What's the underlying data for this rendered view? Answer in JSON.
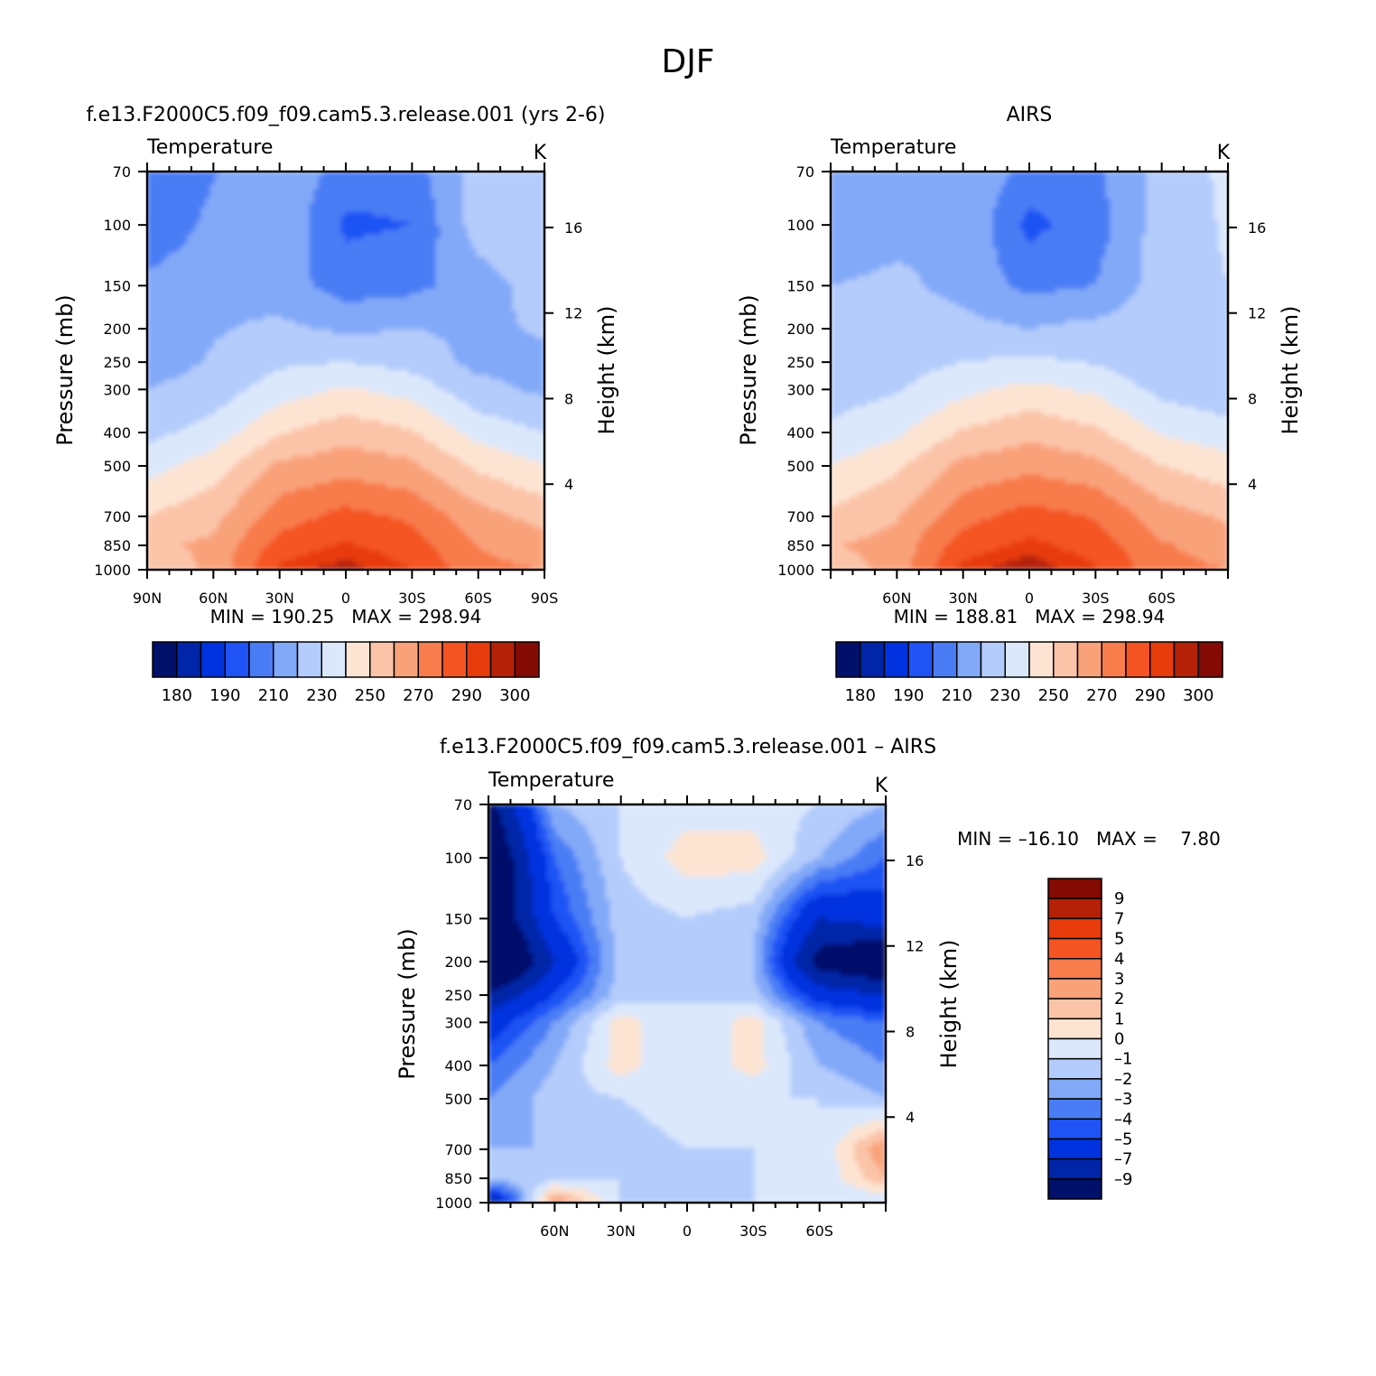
{
  "figure": {
    "title": "DJF"
  },
  "panels": [
    {
      "id": "model",
      "title": "f.e13.F2000C5.f09_f09.cam5.3.release.001 (yrs 2-6)",
      "left_label": "Temperature",
      "right_label": "K",
      "stats": "MIN = 190.25   MAX = 298.94",
      "kind": "abs"
    },
    {
      "id": "obs",
      "title": "AIRS",
      "left_label": "Temperature",
      "right_label": "K",
      "stats": "MIN = 188.81   MAX = 298.94",
      "kind": "abs"
    },
    {
      "id": "diff",
      "title": "f.e13.F2000C5.f09_f09.cam5.3.release.001 – AIRS",
      "left_label": "Temperature",
      "right_label": "K",
      "stats": "MIN = –16.10   MAX =    7.80",
      "kind": "diff"
    }
  ],
  "axes": {
    "ylabel": "Pressure (mb)",
    "y2label": "Height (km)",
    "pressure_ticks": [
      "70",
      "100",
      "150",
      "200",
      "250",
      "300",
      "400",
      "500",
      "700",
      "850",
      "1000"
    ],
    "height_ticks": [
      "16",
      "12",
      "8",
      "4"
    ],
    "lat_ticks_full": [
      "90N",
      "60N",
      "30N",
      "0",
      "30S",
      "60S",
      "90S"
    ],
    "lat_ticks_short": [
      "60N",
      "30N",
      "0",
      "30S",
      "60S"
    ]
  },
  "colorbars": {
    "abs_labels": [
      "180",
      "190",
      "210",
      "230",
      "250",
      "270",
      "290",
      "300"
    ],
    "diff_labels": [
      "9",
      "7",
      "5",
      "4",
      "3",
      "2",
      "1",
      "0",
      "–1",
      "–2",
      "–3",
      "–4",
      "–5",
      "–7",
      "–9"
    ],
    "abs_colors": [
      "#00106b",
      "#0025a8",
      "#0033df",
      "#1f53f5",
      "#4a7df5",
      "#82a9f8",
      "#b4ccfb",
      "#dbe8fc",
      "#fde4d2",
      "#fbc4a8",
      "#f9a27a",
      "#f87c4c",
      "#f45422",
      "#e73b0c",
      "#b42107",
      "#840a04"
    ],
    "diff_colors": [
      "#840a04",
      "#b42107",
      "#e73b0c",
      "#f45422",
      "#f87c4c",
      "#f9a27a",
      "#fbc4a8",
      "#fde4d2",
      "#dbe8fc",
      "#b4ccfb",
      "#82a9f8",
      "#4a7df5",
      "#1f53f5",
      "#0033df",
      "#0025a8",
      "#00106b"
    ]
  },
  "chart_data": [
    {
      "type": "heatmap",
      "title": "f.e13.F2000C5.f09_f09.cam5.3.release.001 (yrs 2-6)",
      "variable": "Temperature",
      "units": "K",
      "xlabel": "",
      "ylabel": "Pressure (mb)",
      "y2label": "Height (km)",
      "x": [
        -90,
        -60,
        -30,
        0,
        30,
        60,
        90
      ],
      "y": [
        70,
        100,
        150,
        200,
        250,
        300,
        400,
        500,
        700,
        850,
        1000
      ],
      "ylim": [
        70,
        1000
      ],
      "values": [
        [
          200,
          209,
          219,
          205,
          205,
          225,
          230
        ],
        [
          200,
          213,
          219,
          198,
          200,
          225,
          230
        ],
        [
          213,
          219,
          215,
          205,
          207,
          215,
          225
        ],
        [
          213,
          219,
          222,
          218,
          220,
          218,
          221
        ],
        [
          215,
          221,
          228,
          230,
          226,
          217,
          218
        ],
        [
          220,
          224,
          235,
          241,
          236,
          223,
          218
        ],
        [
          227,
          234,
          249,
          256,
          251,
          236,
          230
        ],
        [
          236,
          245,
          262,
          266,
          262,
          248,
          240
        ],
        [
          250,
          257,
          275,
          283,
          278,
          264,
          256
        ],
        [
          258,
          262,
          284,
          291,
          285,
          270,
          265
        ],
        [
          253,
          262,
          292,
          298,
          290,
          272,
          270
        ]
      ],
      "min": 190.25,
      "max": 298.94
    },
    {
      "type": "heatmap",
      "title": "AIRS",
      "variable": "Temperature",
      "units": "K",
      "xlabel": "",
      "ylabel": "Pressure (mb)",
      "y2label": "Height (km)",
      "x": [
        -90,
        -60,
        -30,
        0,
        30,
        60,
        90
      ],
      "y": [
        70,
        100,
        150,
        200,
        250,
        300,
        400,
        500,
        700,
        850,
        1000
      ],
      "ylim": [
        70,
        1000
      ],
      "values": [
        [
          210,
          217,
          220,
          206,
          208,
          224,
          232
        ],
        [
          212,
          217,
          220,
          197,
          205,
          225,
          231
        ],
        [
          220,
          222,
          217,
          207,
          210,
          225,
          230
        ],
        [
          222,
          224,
          223,
          220,
          223,
          225,
          227
        ],
        [
          222,
          226,
          230,
          232,
          229,
          222,
          221
        ],
        [
          225,
          229,
          237,
          243,
          238,
          227,
          223
        ],
        [
          232,
          238,
          251,
          257,
          252,
          239,
          234
        ],
        [
          240,
          248,
          263,
          267,
          263,
          250,
          244
        ],
        [
          252,
          259,
          276,
          284,
          279,
          265,
          258
        ],
        [
          259,
          264,
          285,
          292,
          286,
          271,
          266
        ],
        [
          255,
          263,
          293,
          299,
          291,
          273,
          270
        ]
      ],
      "min": 188.81,
      "max": 298.94
    },
    {
      "type": "heatmap",
      "title": "f.e13.F2000C5.f09_f09.cam5.3.release.001 – AIRS",
      "variable": "Temperature",
      "units": "K",
      "xlabel": "",
      "ylabel": "Pressure (mb)",
      "y2label": "Height (km)",
      "x": [
        -90,
        -60,
        -30,
        0,
        30,
        60,
        90
      ],
      "y": [
        70,
        100,
        150,
        200,
        250,
        300,
        400,
        500,
        700,
        850,
        1000
      ],
      "ylim": [
        70,
        1000
      ],
      "values": [
        [
          -10,
          -2,
          -1,
          -0.5,
          -0.5,
          -1,
          -2
        ],
        [
          -12,
          -4,
          -1,
          0.5,
          0.5,
          -2,
          -4
        ],
        [
          -12,
          -5,
          -1.5,
          -1,
          -1.5,
          -7,
          -6
        ],
        [
          -14,
          -7,
          -1.5,
          -1,
          -2,
          -10,
          -12
        ],
        [
          -9,
          -5,
          -1.5,
          -1,
          -1.5,
          -6,
          -7
        ],
        [
          -6,
          -3,
          0.5,
          -1,
          0.5,
          -3,
          -4
        ],
        [
          -4,
          -2,
          0.5,
          -1,
          0.5,
          -2,
          -3
        ],
        [
          -3,
          -1.5,
          -1,
          -0.5,
          -1,
          -1,
          -2
        ],
        [
          -2,
          -2,
          -1.5,
          -1,
          -1,
          -1,
          3
        ],
        [
          -1.5,
          -1.5,
          -1,
          -1.5,
          -1,
          -1,
          2
        ],
        [
          -9,
          3,
          -1,
          -1,
          -1,
          -1,
          -1
        ]
      ],
      "min": -16.1,
      "max": 7.8
    }
  ]
}
